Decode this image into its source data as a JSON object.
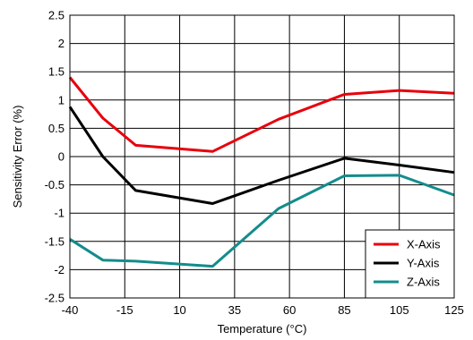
{
  "chart_data": {
    "type": "line",
    "title": "",
    "xlabel": "Temperature (°C)",
    "ylabel": "Sensitivity Error (%)",
    "xlim": [
      -40,
      125
    ],
    "ylim": [
      -2.5,
      2.5
    ],
    "x_ticks": [
      -40,
      -15,
      10,
      35,
      60,
      85,
      105,
      125
    ],
    "x_tick_labels": [
      "-40",
      "-15",
      "10",
      "35",
      "60",
      "85",
      "105",
      "125"
    ],
    "y_ticks": [
      -2.5,
      -2,
      -1.5,
      -1,
      -0.5,
      0,
      0.5,
      1,
      1.5,
      2,
      2.5
    ],
    "y_tick_labels": [
      "-2.5",
      "-2",
      "-1.5",
      "-1",
      "-0.5",
      "0",
      "0.5",
      "1",
      "1.5",
      "2",
      "2.5"
    ],
    "x_tick_positions": [
      0,
      1,
      2,
      3,
      4,
      5,
      6,
      7
    ],
    "grid": true,
    "legend_position": "bottom-right",
    "series": [
      {
        "name": "X-Axis",
        "color": "#e8000b",
        "x": [
          -40,
          -25,
          -10,
          25,
          55,
          85,
          105,
          125
        ],
        "y": [
          1.4,
          0.68,
          0.2,
          0.09,
          0.66,
          1.1,
          1.17,
          1.12
        ]
      },
      {
        "name": "Y-Axis",
        "color": "#000000",
        "x": [
          -40,
          -25,
          -10,
          25,
          55,
          85,
          105,
          125
        ],
        "y": [
          0.88,
          0.0,
          -0.6,
          -0.83,
          -0.42,
          -0.03,
          -0.15,
          -0.28
        ]
      },
      {
        "name": "Z-Axis",
        "color": "#138c8c",
        "x": [
          -40,
          -25,
          -10,
          25,
          55,
          85,
          105,
          125
        ],
        "y": [
          -1.46,
          -1.83,
          -1.85,
          -1.94,
          -0.92,
          -0.34,
          -0.33,
          -0.68
        ]
      }
    ]
  }
}
